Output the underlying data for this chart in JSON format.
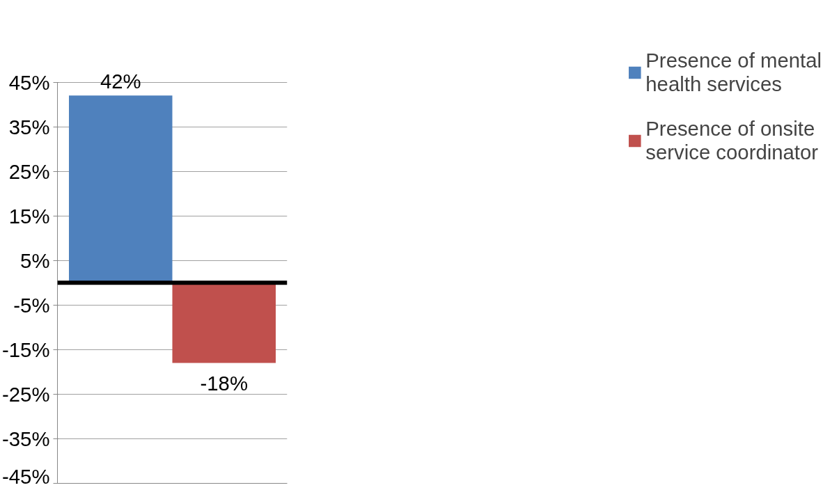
{
  "chart_data": {
    "type": "bar",
    "categories": [
      null
    ],
    "series": [
      {
        "name": "Presence of mental health services",
        "color": "#4f81bd",
        "values": [
          42
        ],
        "value_labels": [
          "42%"
        ]
      },
      {
        "name": "Presence of onsite service coordinator",
        "color": "#c0504d",
        "values": [
          -18
        ],
        "value_labels": [
          "-18%"
        ]
      }
    ],
    "ylim": [
      -45,
      45
    ],
    "yticks": [
      {
        "value": 45,
        "label": "45%"
      },
      {
        "value": 35,
        "label": "35%"
      },
      {
        "value": 25,
        "label": "25%"
      },
      {
        "value": 15,
        "label": "15%"
      },
      {
        "value": 5,
        "label": "5%"
      },
      {
        "value": -5,
        "label": "-5%"
      },
      {
        "value": -15,
        "label": "-15%"
      },
      {
        "value": -25,
        "label": "-25%"
      },
      {
        "value": -35,
        "label": "-35%"
      },
      {
        "value": -45,
        "label": "-45%"
      }
    ],
    "ref_lines": [
      {
        "axis": "y",
        "value": 0,
        "color": "#000000"
      }
    ],
    "grid": "y",
    "legend": "right",
    "tick_labels": "y"
  }
}
